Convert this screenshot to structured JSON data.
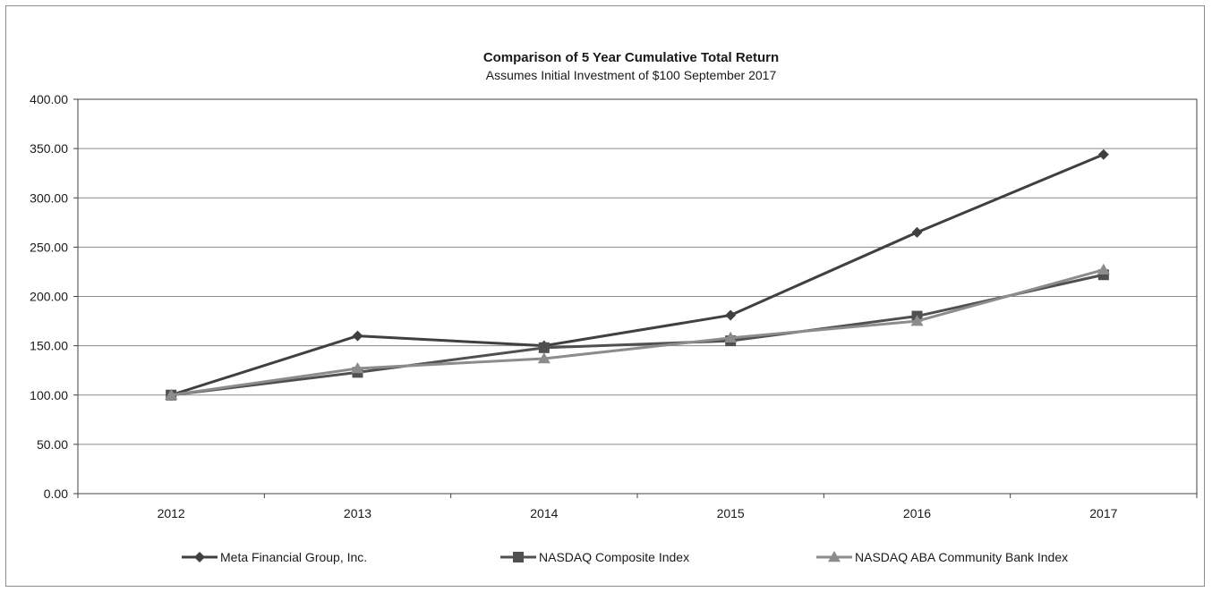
{
  "chart_data": {
    "type": "line",
    "title": "Comparison of 5 Year Cumulative Total Return",
    "subtitle": "Assumes Initial Investment of $100 September 2017",
    "categories": [
      "2012",
      "2013",
      "2014",
      "2015",
      "2016",
      "2017"
    ],
    "y_tick_labels": [
      "0.00",
      "50.00",
      "100.00",
      "150.00",
      "200.00",
      "250.00",
      "300.00",
      "350.00",
      "400.00"
    ],
    "ylim": [
      0,
      400
    ],
    "y_tick_step": 50,
    "grid": true,
    "legend_position": "bottom",
    "series": [
      {
        "name": "Meta Financial Group, Inc.",
        "values": [
          100,
          160,
          150,
          181,
          265,
          344
        ],
        "marker": "diamond",
        "color": "#404040"
      },
      {
        "name": "NASDAQ Composite Index",
        "values": [
          100,
          123,
          148,
          155,
          180,
          222
        ],
        "marker": "square",
        "color": "#505050"
      },
      {
        "name": "NASDAQ ABA Community Bank Index",
        "values": [
          100,
          127,
          137,
          158,
          175,
          227
        ],
        "marker": "triangle",
        "color": "#8c8c8c"
      }
    ]
  }
}
